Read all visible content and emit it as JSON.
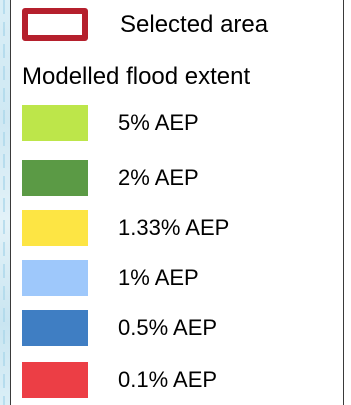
{
  "legend": {
    "selected_area": {
      "label": "Selected area",
      "outline_color": "#b5202d"
    },
    "heading": "Modelled flood extent",
    "items": [
      {
        "label": "5% AEP",
        "color": "#bde64a"
      },
      {
        "label": "2% AEP",
        "color": "#5b9a45"
      },
      {
        "label": "1.33% AEP",
        "color": "#fde544"
      },
      {
        "label": "1% AEP",
        "color": "#9ec8fb"
      },
      {
        "label": "0.5% AEP",
        "color": "#3f7ec3"
      },
      {
        "label": "0.1% AEP",
        "color": "#ec3e45"
      }
    ]
  }
}
